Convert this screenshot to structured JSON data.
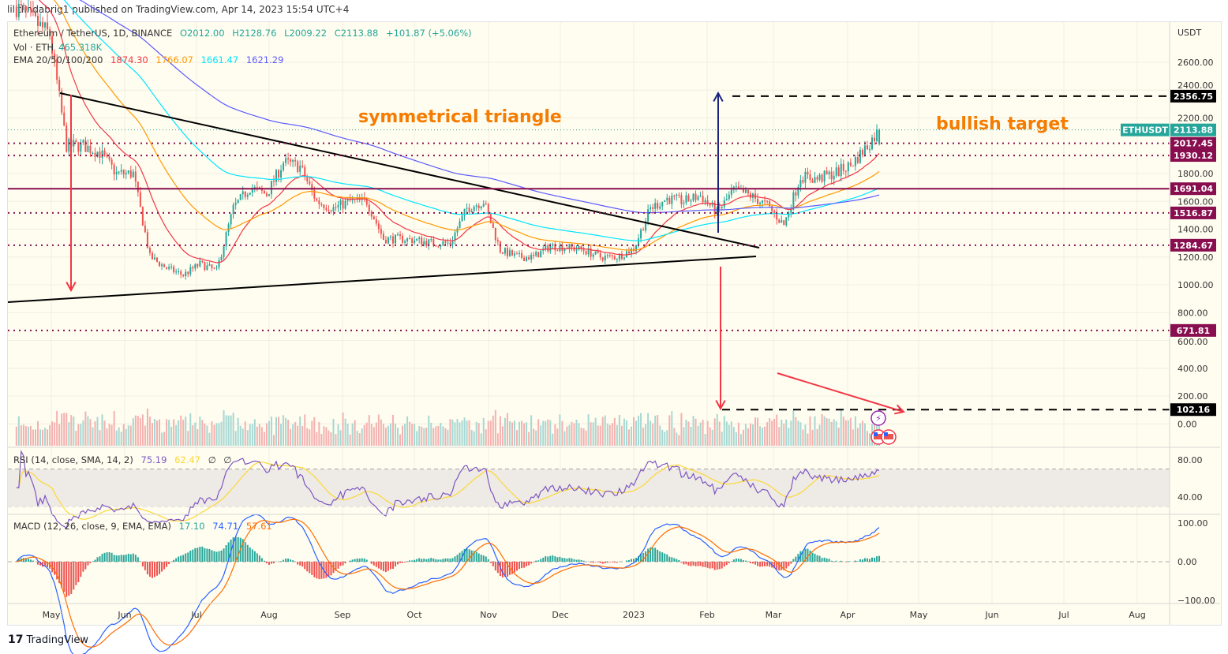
{
  "publisher_line": "lilitlindabrig1 published on TradingView.com, Apr 14, 2023 15:54 UTC+4",
  "symbol": {
    "name": "Ethereum / TetherUS, 1D, BINANCE",
    "open": "O2012.00",
    "high": "H2128.76",
    "low": "L2009.22",
    "close": "C2113.88",
    "change": "+101.87 (+5.06%)",
    "ticker": "ETHUSDT",
    "last_price": "2113.88"
  },
  "volume_legend": {
    "label": "Vol · ETH",
    "value": "465.318K"
  },
  "ema_legend": {
    "label": "EMA 20/50/100/200",
    "values": [
      "1874.30",
      "1766.07",
      "1661.47",
      "1621.29"
    ],
    "colors": [
      "#f23645",
      "#ff9800",
      "#00e5ff",
      "#5b5bff"
    ]
  },
  "rsi_legend": {
    "label": "RSI (14, close, SMA, 14, 2)",
    "rsi": "75.19",
    "sma": "62.47",
    "extra1": "∅",
    "extra2": "∅"
  },
  "macd_legend": {
    "label": "MACD (12, 26, close, 9, EMA, EMA)",
    "hist": "17.10",
    "macd": "74.71",
    "signal": "57.61"
  },
  "price_axis": {
    "currency": "USDT",
    "ticks": [
      "2600.00",
      "2400.00",
      "2200.00",
      "1800.00",
      "1600.00",
      "1400.00",
      "1200.00",
      "1000.00",
      "800.00",
      "600.00",
      "400.00",
      "200.00",
      "0.00"
    ]
  },
  "rsi_axis": {
    "ticks": [
      "80.00",
      "40.00"
    ]
  },
  "macd_axis": {
    "ticks": [
      "100.00",
      "0.00",
      "−100.00"
    ]
  },
  "time_axis": [
    "May",
    "Jun",
    "Jul",
    "Aug",
    "Sep",
    "Oct",
    "Nov",
    "Dec",
    "2023",
    "Feb",
    "Mar",
    "Apr",
    "May",
    "Jun",
    "Jul",
    "Aug"
  ],
  "levels": [
    {
      "price": "2356.75",
      "style": "dashed",
      "color": "#000000"
    },
    {
      "price": "2017.45",
      "style": "dotted",
      "color": "#880e4f"
    },
    {
      "price": "1930.12",
      "style": "dotted",
      "color": "#880e4f"
    },
    {
      "price": "1691.04",
      "style": "solid",
      "color": "#880e4f"
    },
    {
      "price": "1516.87",
      "style": "dotted",
      "color": "#880e4f"
    },
    {
      "price": "1284.67",
      "style": "dotted",
      "color": "#880e4f"
    },
    {
      "price": "671.81",
      "style": "dotted",
      "color": "#880e4f"
    },
    {
      "price": "102.16",
      "style": "dashed",
      "color": "#000000"
    }
  ],
  "annotations": {
    "triangle": "symmetrical triangle",
    "target": "bullish target",
    "color": "#f57c00"
  },
  "colors": {
    "up": "#26a69a",
    "down": "#ef5350",
    "rsi": "#7e57c2",
    "rsi_sma": "#fdd835",
    "macd": "#2962ff",
    "signal": "#ff6d00"
  },
  "chart_data": {
    "type": "candlestick",
    "note_series": "approximate weekly closes read from chart",
    "dates": [
      "2022-04-17",
      "2022-04-24",
      "2022-05-01",
      "2022-05-08",
      "2022-05-15",
      "2022-05-22",
      "2022-05-29",
      "2022-06-05",
      "2022-06-12",
      "2022-06-19",
      "2022-06-26",
      "2022-07-03",
      "2022-07-10",
      "2022-07-17",
      "2022-07-24",
      "2022-07-31",
      "2022-08-07",
      "2022-08-14",
      "2022-08-21",
      "2022-08-28",
      "2022-09-04",
      "2022-09-11",
      "2022-09-18",
      "2022-09-25",
      "2022-10-02",
      "2022-10-09",
      "2022-10-16",
      "2022-10-23",
      "2022-10-30",
      "2022-11-06",
      "2022-11-13",
      "2022-11-20",
      "2022-11-27",
      "2022-12-04",
      "2022-12-11",
      "2022-12-18",
      "2022-12-25",
      "2023-01-01",
      "2023-01-08",
      "2023-01-15",
      "2023-01-22",
      "2023-01-29",
      "2023-02-05",
      "2023-02-12",
      "2023-02-19",
      "2023-02-26",
      "2023-03-05",
      "2023-03-12",
      "2023-03-19",
      "2023-03-26",
      "2023-04-02",
      "2023-04-09",
      "2023-04-14"
    ],
    "close": [
      3000,
      2900,
      2800,
      2000,
      2000,
      1950,
      1800,
      1800,
      1200,
      1120,
      1070,
      1150,
      1100,
      1550,
      1700,
      1650,
      1880,
      1850,
      1600,
      1550,
      1600,
      1600,
      1330,
      1330,
      1320,
      1300,
      1300,
      1550,
      1600,
      1250,
      1200,
      1200,
      1280,
      1270,
      1250,
      1200,
      1200,
      1260,
      1550,
      1620,
      1600,
      1640,
      1520,
      1680,
      1640,
      1570,
      1430,
      1780,
      1760,
      1800,
      1860,
      2000,
      2113.88
    ],
    "ylim": [
      0,
      2700
    ]
  }
}
